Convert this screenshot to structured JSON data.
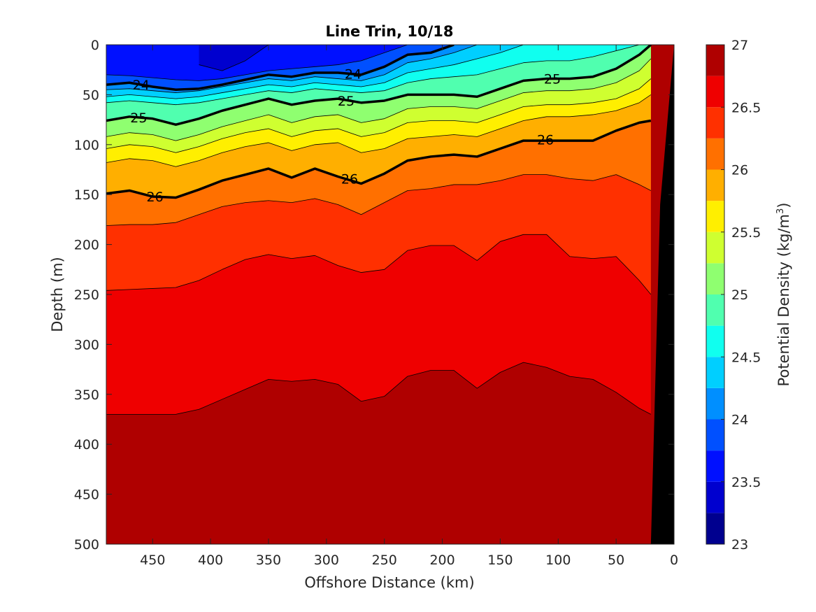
{
  "chart_data": {
    "type": "contour",
    "title": "Line Trin, 10/18",
    "xlabel": "Offshore Distance (km)",
    "ylabel": "Depth (m)",
    "xlim": [
      490,
      0
    ],
    "ylim": [
      0,
      500
    ],
    "x_reversed": true,
    "y_reversed": true,
    "x_ticks": [
      450,
      400,
      350,
      300,
      250,
      200,
      150,
      100,
      50,
      0
    ],
    "y_ticks": [
      0,
      50,
      100,
      150,
      200,
      250,
      300,
      350,
      400,
      450,
      500
    ],
    "colorbar": {
      "label": "Potential Density (kg/m",
      "label_superscript": "3",
      "label_suffix": ")",
      "min": 23,
      "max": 27,
      "step": 0.25,
      "ticks": [
        23,
        23.5,
        24,
        24.5,
        25,
        25.5,
        26,
        26.5,
        27
      ],
      "colors": [
        "#00008f",
        "#0000cf",
        "#0010ff",
        "#0050ff",
        "#008fff",
        "#00cfff",
        "#10ffef",
        "#50ffaf",
        "#8fff70",
        "#cfff30",
        "#ffef00",
        "#ffaf00",
        "#ff7000",
        "#ff3000",
        "#ef0000",
        "#af0000"
      ]
    },
    "labeled_contours": [
      "24",
      "25",
      "26"
    ],
    "x_grid": [
      490,
      470,
      450,
      430,
      410,
      390,
      370,
      350,
      330,
      310,
      290,
      270,
      250,
      230,
      210,
      190,
      170,
      150,
      130,
      110,
      90,
      70,
      50,
      30,
      20
    ],
    "contour_depths": [
      {
        "level": 23.25,
        "depths": [
          null,
          null,
          null,
          null,
          0,
          0,
          0,
          0,
          null,
          null,
          null,
          null,
          null,
          null,
          null,
          null,
          null,
          null,
          null,
          null,
          null,
          null,
          null,
          null,
          null
        ]
      },
      {
        "level": 23.5,
        "depths": [
          null,
          null,
          null,
          null,
          20,
          26,
          16,
          0,
          null,
          null,
          null,
          null,
          null,
          null,
          null,
          null,
          null,
          null,
          null,
          null,
          null,
          null,
          null,
          null,
          null
        ]
      },
      {
        "level": 23.75,
        "depths": [
          30,
          31,
          33,
          35,
          36,
          34,
          30,
          26,
          24,
          22,
          20,
          16,
          8,
          0,
          0,
          null,
          null,
          null,
          null,
          null,
          null,
          null,
          null,
          null,
          null
        ]
      },
      {
        "level": 24.0,
        "depths": [
          40,
          38,
          42,
          45,
          44,
          40,
          35,
          30,
          32,
          28,
          28,
          30,
          22,
          10,
          8,
          0,
          null,
          null,
          null,
          null,
          null,
          null,
          null,
          null,
          null
        ]
      },
      {
        "level": 24.25,
        "depths": [
          45,
          44,
          46,
          48,
          46,
          42,
          38,
          34,
          36,
          32,
          34,
          36,
          30,
          18,
          14,
          8,
          0,
          null,
          null,
          null,
          null,
          null,
          null,
          null,
          null
        ]
      },
      {
        "level": 24.5,
        "depths": [
          52,
          50,
          52,
          54,
          52,
          48,
          44,
          40,
          42,
          38,
          40,
          42,
          38,
          28,
          24,
          20,
          14,
          8,
          0,
          null,
          null,
          null,
          0,
          null,
          null
        ]
      },
      {
        "level": 24.75,
        "depths": [
          58,
          56,
          58,
          60,
          58,
          54,
          50,
          46,
          48,
          44,
          46,
          48,
          46,
          38,
          34,
          32,
          30,
          24,
          18,
          16,
          16,
          12,
          6,
          0,
          null
        ]
      },
      {
        "level": 25.0,
        "depths": [
          76,
          72,
          74,
          80,
          74,
          66,
          60,
          54,
          60,
          56,
          54,
          58,
          56,
          50,
          50,
          50,
          52,
          44,
          36,
          34,
          34,
          32,
          24,
          10,
          0
        ]
      },
      {
        "level": 25.25,
        "depths": [
          92,
          88,
          90,
          96,
          90,
          82,
          76,
          70,
          78,
          72,
          70,
          78,
          74,
          64,
          62,
          62,
          64,
          56,
          48,
          46,
          46,
          44,
          38,
          26,
          14
        ]
      },
      {
        "level": 25.5,
        "depths": [
          104,
          100,
          102,
          108,
          102,
          94,
          88,
          84,
          92,
          86,
          84,
          92,
          88,
          78,
          76,
          76,
          78,
          70,
          62,
          60,
          60,
          58,
          54,
          44,
          34
        ]
      },
      {
        "level": 25.75,
        "depths": [
          118,
          114,
          116,
          122,
          116,
          108,
          102,
          98,
          106,
          100,
          98,
          108,
          104,
          94,
          92,
          90,
          92,
          84,
          76,
          72,
          72,
          70,
          66,
          58,
          50
        ]
      },
      {
        "level": 26.0,
        "depths": [
          149,
          146,
          152,
          153,
          145,
          136,
          130,
          124,
          133,
          124,
          132,
          139,
          129,
          116,
          112,
          110,
          112,
          104,
          96,
          96,
          96,
          96,
          86,
          78,
          76
        ]
      },
      {
        "level": 26.25,
        "depths": [
          181,
          180,
          180,
          178,
          170,
          162,
          158,
          156,
          158,
          154,
          160,
          170,
          158,
          146,
          144,
          140,
          140,
          136,
          130,
          130,
          134,
          136,
          130,
          140,
          146
        ]
      },
      {
        "level": 26.5,
        "depths": [
          246,
          245,
          244,
          243,
          236,
          225,
          215,
          210,
          214,
          211,
          221,
          228,
          225,
          206,
          201,
          201,
          216,
          197,
          190,
          190,
          212,
          214,
          212,
          236,
          250
        ]
      },
      {
        "level": 26.75,
        "depths": [
          370,
          370,
          370,
          370,
          365,
          355,
          345,
          335,
          337,
          335,
          340,
          357,
          352,
          332,
          326,
          326,
          344,
          328,
          318,
          323,
          332,
          335,
          348,
          364,
          370
        ]
      }
    ],
    "label_positions": [
      {
        "text": "24",
        "x": 460,
        "depth": 40
      },
      {
        "text": "24",
        "x": 277,
        "depth": 29
      },
      {
        "text": "25",
        "x": 105,
        "depth": 34
      },
      {
        "text": "25",
        "x": 283,
        "depth": 56
      },
      {
        "text": "25",
        "x": 462,
        "depth": 73
      },
      {
        "text": "26",
        "x": 111,
        "depth": 95
      },
      {
        "text": "26",
        "x": 280,
        "depth": 134
      },
      {
        "text": "26",
        "x": 448,
        "depth": 152
      }
    ],
    "bathymetry": {
      "x": [
        20,
        12,
        0,
        0,
        25
      ],
      "depth": [
        500,
        160,
        0,
        500,
        500
      ]
    }
  }
}
